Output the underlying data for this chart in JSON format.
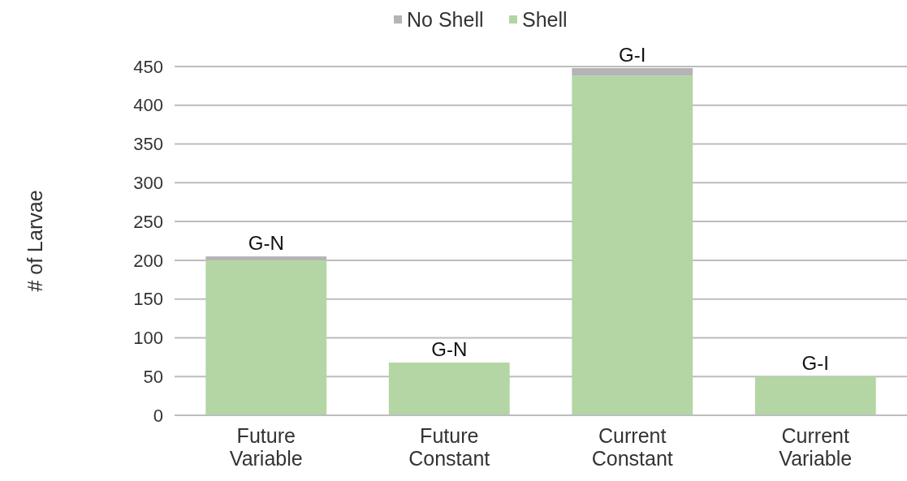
{
  "chart_data": {
    "type": "bar",
    "stacked": true,
    "ylabel": "# of Larvae",
    "categories": [
      "Future\nVariable",
      "Future\nConstant",
      "Current\nConstant",
      "Current\nVariable"
    ],
    "series": [
      {
        "name": "Shell",
        "color": "#b3d6a4",
        "values": [
          200,
          68,
          438,
          50
        ]
      },
      {
        "name": "No Shell",
        "color": "#b4b4b4",
        "values": [
          5,
          0,
          10,
          0
        ]
      }
    ],
    "ylim": [
      0,
      450
    ],
    "yticks": [
      0,
      50,
      100,
      150,
      200,
      250,
      300,
      350,
      400,
      450
    ],
    "grid": "y",
    "legend": "top",
    "annotations": [
      {
        "text": "G-N",
        "x": "Future\nVariable",
        "y": 205
      },
      {
        "text": "G-N",
        "x": "Future\nConstant",
        "y": 68
      },
      {
        "text": "G-I",
        "x": "Current\nConstant",
        "y": 448
      },
      {
        "text": "G-I",
        "x": "Current\nVariable",
        "y": 50
      }
    ]
  }
}
